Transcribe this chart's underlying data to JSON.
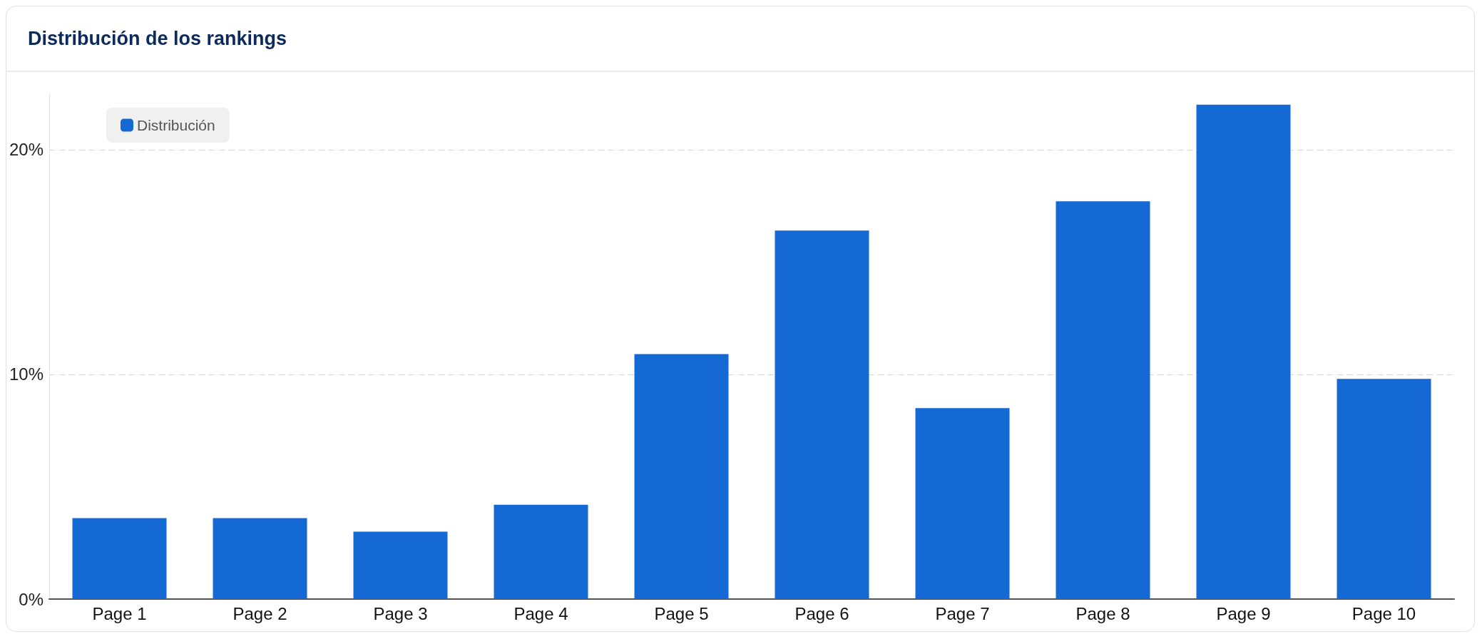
{
  "chart_data": {
    "type": "bar",
    "title": "Distribución de los rankings",
    "categories": [
      "Page 1",
      "Page 2",
      "Page 3",
      "Page 4",
      "Page 5",
      "Page 6",
      "Page 7",
      "Page 8",
      "Page 9",
      "Page 10"
    ],
    "series": [
      {
        "name": "Distribución",
        "color": "#1469d4",
        "values": [
          3.6,
          3.6,
          3.0,
          4.2,
          10.9,
          16.4,
          8.5,
          17.7,
          22.0,
          9.8
        ]
      }
    ],
    "ylim": [
      0,
      22.5
    ],
    "yticks": [
      {
        "value": 0,
        "label": "0%"
      },
      {
        "value": 10,
        "label": "10%"
      },
      {
        "value": 20,
        "label": "20%"
      }
    ],
    "grid": "y",
    "legend": "top left"
  }
}
